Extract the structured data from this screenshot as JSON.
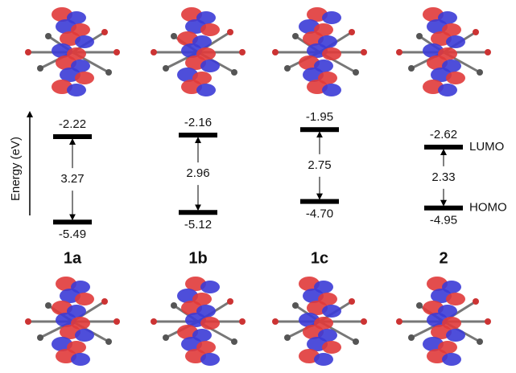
{
  "axis_label": "Energy (eV)",
  "level_labels": {
    "lumo": "LUMO",
    "homo": "HOMO"
  },
  "compounds": [
    {
      "label": "1a",
      "lumo": "-2.22",
      "gap": "3.27",
      "homo": "-5.49"
    },
    {
      "label": "1b",
      "lumo": "-2.16",
      "gap": "2.96",
      "homo": "-5.12"
    },
    {
      "label": "1c",
      "lumo": "-1.95",
      "gap": "2.75",
      "homo": "-4.70"
    },
    {
      "label": "2",
      "lumo": "-2.62",
      "gap": "2.33",
      "homo": "-4.95"
    }
  ]
}
